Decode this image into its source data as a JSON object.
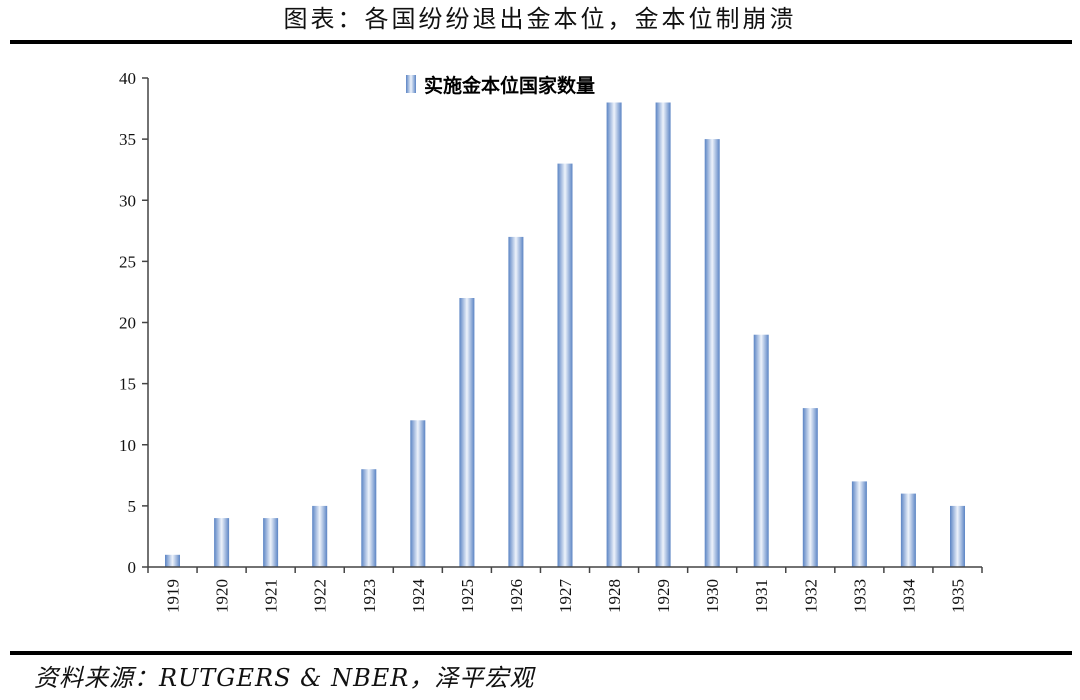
{
  "figure": {
    "title": "图表：各国纷纷退出金本位，金本位制崩溃",
    "source": "资料来源：RUTGERS & NBER，泽平宏观"
  },
  "colors": {
    "bar_edge": "#5b84c4",
    "bar_light": "#eef3fb",
    "axis": "#444444"
  },
  "chart_data": {
    "type": "bar",
    "categories": [
      "1919",
      "1920",
      "1921",
      "1922",
      "1923",
      "1924",
      "1925",
      "1926",
      "1927",
      "1928",
      "1929",
      "1930",
      "1931",
      "1932",
      "1933",
      "1934",
      "1935"
    ],
    "series": [
      {
        "name": "实施金本位国家数量",
        "values": [
          1,
          4,
          4,
          5,
          8,
          12,
          22,
          27,
          33,
          38,
          38,
          35,
          19,
          13,
          7,
          6,
          5
        ]
      }
    ],
    "yticks": [
      0,
      5,
      10,
      15,
      20,
      25,
      30,
      35,
      40
    ],
    "ylim": [
      0,
      40
    ],
    "legend_position": "top-center",
    "grid": false
  }
}
